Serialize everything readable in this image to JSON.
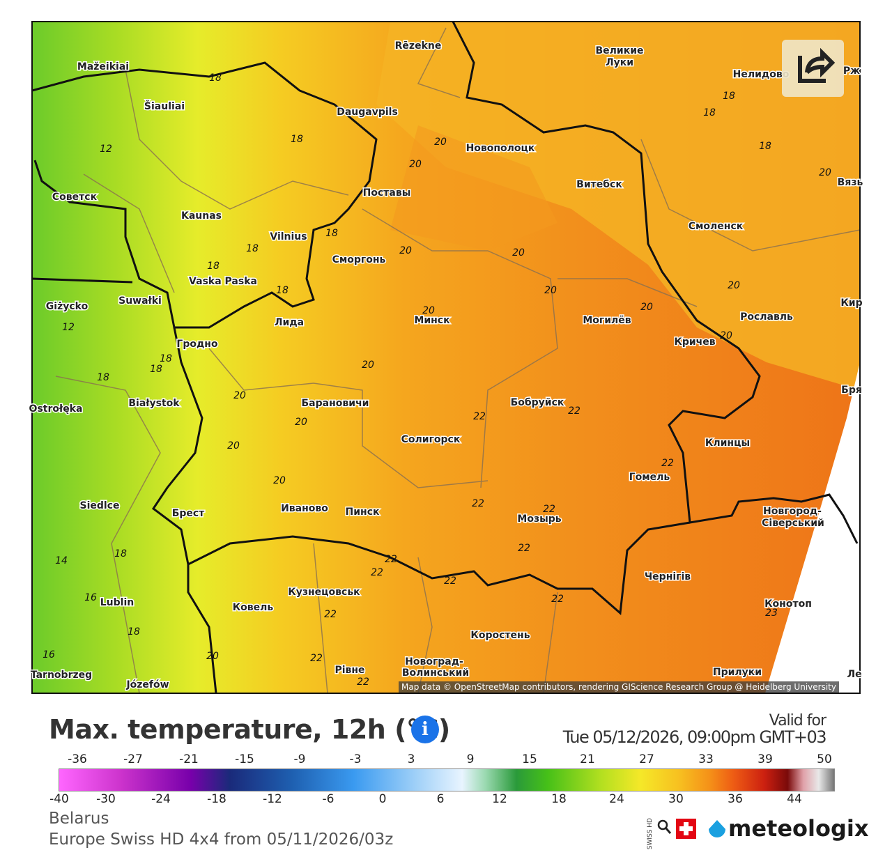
{
  "map": {
    "cities": [
      "Mažeikiai",
      "Šiauliai",
      "Rēzekne",
      "Великие",
      "Луки",
      "Нелидово",
      "Daugavpils",
      "Новополоцк",
      "Витебск",
      "Советск",
      "Kaunas",
      "Поставы",
      "Vilnius",
      "Смоленск",
      "Сморгонь",
      "Vaska Paska",
      "Suwałki",
      "Giżycko",
      "Лида",
      "Минск",
      "Могилёв",
      "Рославль",
      "Кричев",
      "Гродно",
      "Białystok",
      "Барановичи",
      "Бобруйск",
      "Ostrołęka",
      "Солигорск",
      "Клинцы",
      "Гомель",
      "Siedlce",
      "Брест",
      "Иваново",
      "Пинск",
      "Новгород-",
      "Сіверський",
      "Мозырь",
      "Чернігів",
      "Кузнецовськ",
      "Ковель",
      "Lublin",
      "Конотоп",
      "Коростень",
      "Новоград-",
      "Волинський",
      "Рівне",
      "Прилуки",
      "Tarnobrzeg",
      "Józefów",
      "Рж",
      "Вязь",
      "Кир",
      "Бря",
      "Ле"
    ],
    "contour_labels": [
      18,
      18,
      12,
      18,
      20,
      20,
      18,
      18,
      20,
      20,
      18,
      18,
      18,
      18,
      20,
      20,
      20,
      20,
      20,
      12,
      18,
      18,
      18,
      20,
      20,
      20,
      20,
      22,
      22,
      20,
      20,
      22,
      22,
      22,
      22,
      22,
      22,
      22,
      14,
      18,
      16,
      22,
      16,
      18,
      20,
      22,
      22,
      22,
      23
    ],
    "attribution": "Map data © OpenStreetMap contributors, rendering GIScience Research Group @ Heidelberg University"
  },
  "header": {
    "title": "Max. temperature, 12h (°C)",
    "valid_label": "Valid for",
    "valid_time": "Tue 05/12/2026, 09:00pm GMT+03",
    "info": "i"
  },
  "legend": {
    "top_ticks": [
      -36,
      -27,
      -21,
      -15,
      -9,
      -3,
      3,
      9,
      15,
      21,
      27,
      33,
      39,
      50
    ],
    "bottom_ticks": [
      -40,
      -30,
      -24,
      -18,
      -12,
      -6,
      0,
      6,
      12,
      18,
      24,
      30,
      36,
      44
    ]
  },
  "footer": {
    "region": "Belarus",
    "model": "Europe Swiss HD 4x4 from 05/11/2026/03z",
    "badge": "SWISS HD",
    "brand": "meteologix"
  }
}
